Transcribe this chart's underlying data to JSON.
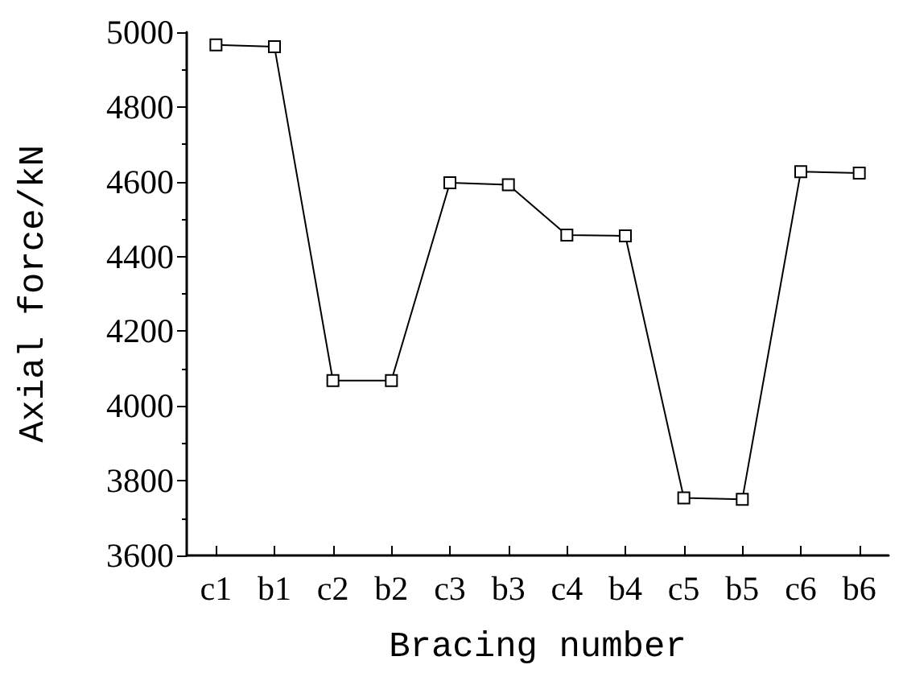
{
  "chart_data": {
    "type": "line",
    "xlabel": "Bracing number",
    "ylabel": "Axial force/kN",
    "categories": [
      "c1",
      "b1",
      "c2",
      "b2",
      "c3",
      "b3",
      "c4",
      "b4",
      "c5",
      "b5",
      "c6",
      "b6"
    ],
    "series": [
      {
        "color": "#000000",
        "values": [
          4966,
          4961,
          4068,
          4068,
          4597,
          4592,
          4457,
          4455,
          3754,
          3750,
          4627,
          4623
        ]
      }
    ],
    "ylim": [
      3600,
      5000
    ],
    "yticks": [
      3600,
      3800,
      4000,
      4200,
      4400,
      4600,
      4800,
      5000
    ],
    "grid": false,
    "marker": "square",
    "line_style": "solid"
  }
}
